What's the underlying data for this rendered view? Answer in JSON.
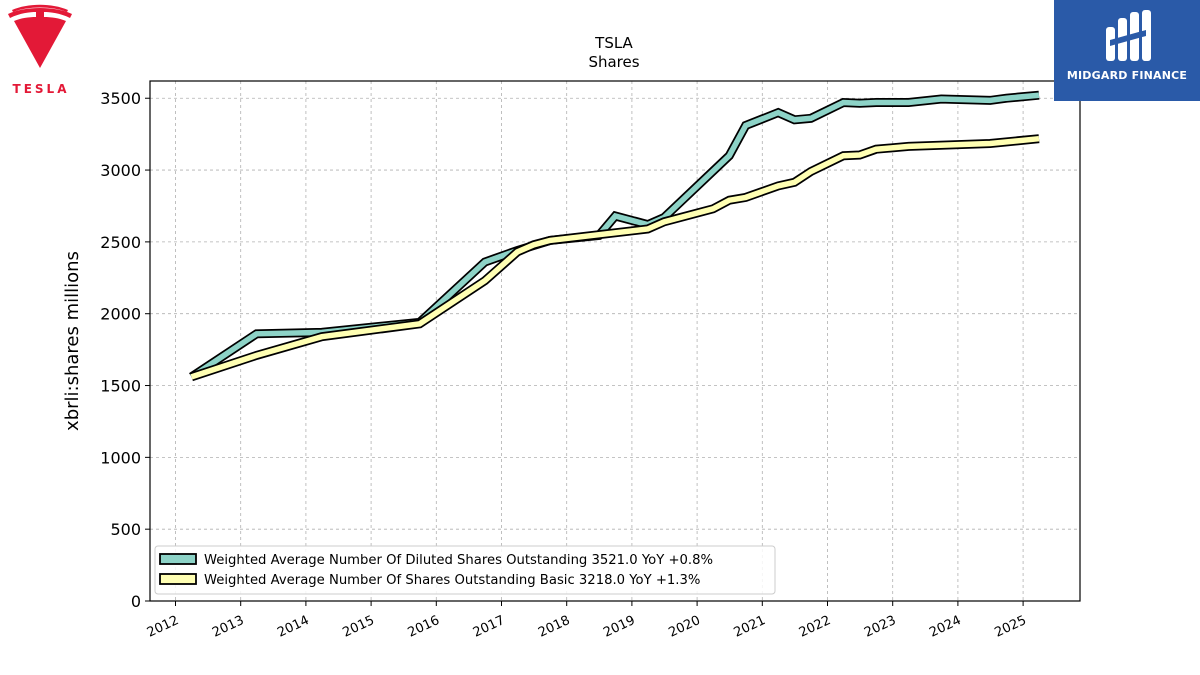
{
  "brand": {
    "left_logo_name": "TESLA",
    "left_logo_color": "#e31937",
    "right_logo_name": "MIDGARD FINANCE",
    "right_logo_bg": "#2a5aa8"
  },
  "chart_data": {
    "type": "line",
    "title": "TSLA",
    "subtitle": "Shares",
    "ylabel": "xbrli:shares millions",
    "xlabel": "",
    "ylim": [
      0,
      3620
    ],
    "yticks": [
      "0",
      "500",
      "1000",
      "1500",
      "2000",
      "2500",
      "3000",
      "3500"
    ],
    "ytick_values": [
      0,
      500,
      1000,
      1500,
      2000,
      2500,
      3000,
      3500
    ],
    "xticks": [
      "2012",
      "2013",
      "2014",
      "2015",
      "2016",
      "2017",
      "2018",
      "2019",
      "2020",
      "2021",
      "2022",
      "2023",
      "2024",
      "2025"
    ],
    "grid": true,
    "legend_position": "lower-left",
    "series": [
      {
        "name": "Weighted Average Number Of Diluted Shares Outstanding",
        "legend": "Weighted Average Number Of Diluted Shares Outstanding  3521.0 YoY +0.8%",
        "color": "#8dd3c7",
        "points": [
          [
            "2012-03-31",
            1560
          ],
          [
            "2013-03-31",
            1860
          ],
          [
            "2014-03-31",
            1870
          ],
          [
            "2015-09-30",
            1940
          ],
          [
            "2016-09-30",
            2360
          ],
          [
            "2017-03-31",
            2440
          ],
          [
            "2017-09-30",
            2510
          ],
          [
            "2018-06-30",
            2545
          ],
          [
            "2018-09-30",
            2680
          ],
          [
            "2019-03-31",
            2620
          ],
          [
            "2019-06-30",
            2670
          ],
          [
            "2020-06-30",
            3100
          ],
          [
            "2020-09-30",
            3310
          ],
          [
            "2021-03-31",
            3400
          ],
          [
            "2021-06-30",
            3350
          ],
          [
            "2021-09-30",
            3360
          ],
          [
            "2022-03-31",
            3470
          ],
          [
            "2022-06-30",
            3465
          ],
          [
            "2022-09-30",
            3470
          ],
          [
            "2023-03-31",
            3470
          ],
          [
            "2023-09-30",
            3495
          ],
          [
            "2024-06-30",
            3485
          ],
          [
            "2024-09-30",
            3500
          ],
          [
            "2025-03-31",
            3521
          ]
        ]
      },
      {
        "name": "Weighted Average Number Of Shares Outstanding Basic",
        "legend": "Weighted Average Number Of Shares Outstanding Basic  3218.0 YoY +1.3%",
        "color": "#ffffb3",
        "points": [
          [
            "2012-03-31",
            1560
          ],
          [
            "2013-03-31",
            1710
          ],
          [
            "2014-03-31",
            1840
          ],
          [
            "2015-09-30",
            1930
          ],
          [
            "2016-09-30",
            2230
          ],
          [
            "2017-03-31",
            2430
          ],
          [
            "2017-06-30",
            2480
          ],
          [
            "2017-09-30",
            2510
          ],
          [
            "2018-06-30",
            2550
          ],
          [
            "2019-03-31",
            2590
          ],
          [
            "2019-06-30",
            2640
          ],
          [
            "2020-03-31",
            2730
          ],
          [
            "2020-06-30",
            2790
          ],
          [
            "2020-09-30",
            2810
          ],
          [
            "2021-03-31",
            2890
          ],
          [
            "2021-06-30",
            2915
          ],
          [
            "2021-09-30",
            2990
          ],
          [
            "2022-03-31",
            3100
          ],
          [
            "2022-06-30",
            3105
          ],
          [
            "2022-09-30",
            3145
          ],
          [
            "2023-03-31",
            3165
          ],
          [
            "2024-06-30",
            3185
          ],
          [
            "2025-03-31",
            3218
          ]
        ]
      }
    ]
  }
}
